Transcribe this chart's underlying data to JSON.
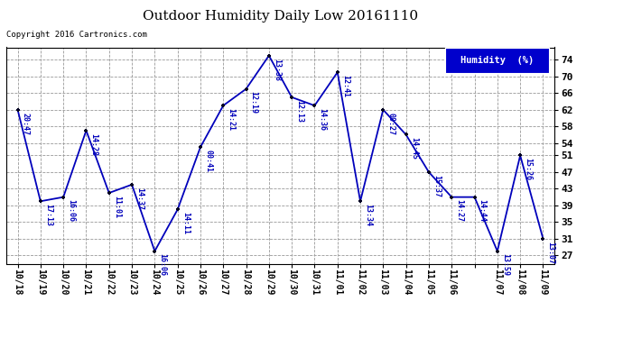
{
  "title": "Outdoor Humidity Daily Low 20161110",
  "copyright": "Copyright 2016 Cartronics.com",
  "legend_label": "Humidity  (%)",
  "ylim": [
    25,
    77
  ],
  "yticks": [
    27,
    31,
    35,
    39,
    43,
    47,
    51,
    54,
    58,
    62,
    66,
    70,
    74
  ],
  "line_color": "#0000bb",
  "marker_color": "#000022",
  "bg_color": "#ffffff",
  "grid_color": "#999999",
  "points": [
    {
      "x": "10/18",
      "y": 62,
      "label": "20:47"
    },
    {
      "x": "10/19",
      "y": 40,
      "label": "17:13"
    },
    {
      "x": "10/20",
      "y": 41,
      "label": "16:06"
    },
    {
      "x": "10/21",
      "y": 57,
      "label": "14:28"
    },
    {
      "x": "10/22",
      "y": 42,
      "label": "11:01"
    },
    {
      "x": "10/23",
      "y": 44,
      "label": "14:37"
    },
    {
      "x": "10/24",
      "y": 28,
      "label": "16:06"
    },
    {
      "x": "10/25",
      "y": 38,
      "label": "14:11"
    },
    {
      "x": "10/26",
      "y": 53,
      "label": "00:41"
    },
    {
      "x": "10/27",
      "y": 63,
      "label": "14:21"
    },
    {
      "x": "10/28",
      "y": 67,
      "label": "12:19"
    },
    {
      "x": "10/29",
      "y": 75,
      "label": "13:38"
    },
    {
      "x": "10/30",
      "y": 65,
      "label": "12:13"
    },
    {
      "x": "10/31",
      "y": 63,
      "label": "14:36"
    },
    {
      "x": "11/01",
      "y": 71,
      "label": "12:41"
    },
    {
      "x": "11/02",
      "y": 40,
      "label": "13:34"
    },
    {
      "x": "11/03",
      "y": 62,
      "label": "00:27"
    },
    {
      "x": "11/04",
      "y": 56,
      "label": "14:45"
    },
    {
      "x": "11/05",
      "y": 47,
      "label": "15:37"
    },
    {
      "x": "11/06",
      "y": 41,
      "label": "14:27"
    },
    {
      "x": "11/06",
      "y": 41,
      "label": "14:44"
    },
    {
      "x": "11/07",
      "y": 28,
      "label": "13:59"
    },
    {
      "x": "11/08",
      "y": 51,
      "label": "15:26"
    },
    {
      "x": "11/09",
      "y": 31,
      "label": "13:07"
    }
  ]
}
